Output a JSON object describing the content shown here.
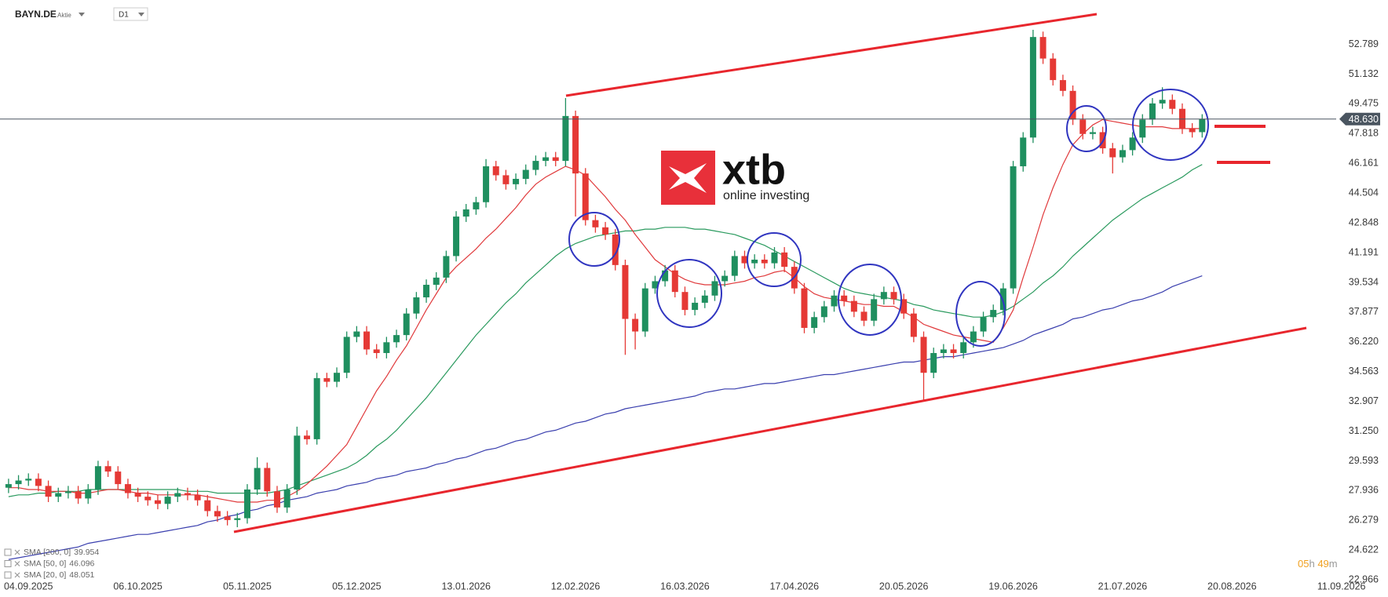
{
  "chart_data": {
    "type": "candlestick",
    "title": "BAYN.DE",
    "subtitle": "Aktie",
    "timeframe": "D1",
    "categories": [
      null,
      null,
      "04.09.2025",
      null,
      null,
      null,
      null,
      null,
      null,
      null,
      null,
      null,
      null,
      "06.10.2025",
      null,
      null,
      null,
      null,
      null,
      null,
      null,
      null,
      null,
      null,
      "05.11.2025",
      null,
      null,
      null,
      null,
      null,
      null,
      null,
      null,
      null,
      null,
      "05.12.2025",
      null,
      null,
      null,
      null,
      null,
      null,
      null,
      null,
      null,
      null,
      "13.01.2026",
      null,
      null,
      null,
      null,
      null,
      null,
      null,
      null,
      null,
      null,
      "12.02.2026",
      null,
      null,
      null,
      null,
      null,
      null,
      null,
      null,
      null,
      null,
      "16.03.2026",
      null,
      null,
      null,
      null,
      null,
      null,
      null,
      null,
      null,
      null,
      "17.04.2026",
      null,
      null,
      null,
      null,
      null,
      null,
      null,
      null,
      null,
      null,
      "20.05.2026",
      null,
      null,
      null,
      null,
      null,
      null,
      null,
      null,
      null,
      null,
      "19.06.2026",
      null,
      null,
      null,
      null,
      null,
      null,
      null,
      null,
      null,
      null,
      "21.07.2026",
      null,
      null,
      null,
      null,
      null,
      null,
      null,
      null,
      null,
      null,
      "20.08.2026",
      null,
      null,
      null,
      null,
      null,
      null,
      null,
      null,
      null,
      null,
      "11.09.2026"
    ],
    "open": [
      28.1,
      28.3,
      28.5,
      28.6,
      28.2,
      27.6,
      27.8,
      27.9,
      27.5,
      28.0,
      29.3,
      29.0,
      28.3,
      27.8,
      27.6,
      27.4,
      27.2,
      27.6,
      27.8,
      27.7,
      27.4,
      26.8,
      26.5,
      26.3,
      26.4,
      28.0,
      29.2,
      27.9,
      27.0,
      28.0,
      31.0,
      30.8,
      34.2,
      34.0,
      34.5,
      36.5,
      36.8,
      35.8,
      35.6,
      36.2,
      36.6,
      37.8,
      38.7,
      39.4,
      39.8,
      41.0,
      43.2,
      43.6,
      44.0,
      46.0,
      45.5,
      45.0,
      45.3,
      45.8,
      46.3,
      46.5,
      46.3,
      48.8,
      45.6,
      43.0,
      42.6,
      42.2,
      40.5,
      37.5,
      36.8,
      39.2,
      39.6,
      40.2,
      39.0,
      38.0,
      38.4,
      38.8,
      39.6,
      39.9,
      41.0,
      40.6,
      40.8,
      40.6,
      41.2,
      40.4,
      39.2,
      37.0,
      37.6,
      38.2,
      38.8,
      38.5,
      37.9,
      37.4,
      38.6,
      39.0,
      38.6,
      37.8,
      36.5,
      34.5,
      35.6,
      35.8,
      35.6,
      36.2,
      36.8,
      37.6,
      38.0,
      39.2,
      46.0,
      47.6,
      53.2,
      52.0,
      50.8,
      50.2,
      48.6,
      47.8,
      47.9,
      47.0,
      46.5,
      46.9,
      47.6,
      48.6,
      49.5,
      49.7,
      49.2,
      48.1,
      47.9,
      null,
      null,
      null,
      null,
      null,
      null,
      null,
      null,
      null,
      null,
      null,
      null,
      null,
      null
    ],
    "high": [
      28.6,
      28.8,
      28.9,
      28.9,
      28.5,
      28.1,
      28.2,
      28.2,
      28.3,
      29.6,
      29.6,
      29.3,
      28.6,
      28.1,
      27.9,
      27.7,
      27.9,
      28.1,
      28.1,
      28.0,
      27.7,
      27.1,
      26.8,
      26.7,
      28.3,
      29.8,
      29.5,
      28.2,
      28.3,
      31.5,
      31.3,
      34.5,
      34.5,
      34.8,
      36.8,
      37.1,
      37.1,
      36.1,
      36.5,
      36.9,
      38.1,
      39.0,
      39.7,
      40.1,
      41.3,
      43.5,
      43.9,
      44.3,
      46.4,
      46.3,
      45.8,
      45.6,
      46.1,
      46.6,
      46.8,
      46.8,
      49.8,
      49.1,
      45.9,
      43.3,
      42.9,
      42.5,
      40.8,
      37.8,
      39.5,
      39.9,
      40.5,
      40.5,
      39.3,
      38.7,
      39.1,
      39.9,
      40.2,
      41.3,
      41.3,
      41.1,
      41.1,
      41.5,
      41.5,
      40.7,
      39.5,
      37.9,
      38.5,
      39.1,
      39.1,
      38.8,
      38.2,
      38.9,
      39.3,
      39.3,
      38.9,
      38.1,
      36.8,
      35.9,
      36.1,
      36.1,
      36.5,
      37.1,
      37.9,
      38.3,
      39.5,
      46.3,
      47.9,
      53.6,
      53.5,
      52.3,
      51.1,
      50.5,
      48.9,
      48.2,
      48.2,
      47.3,
      47.2,
      47.9,
      48.9,
      49.8,
      50.4,
      50.0,
      49.5,
      48.4,
      48.9,
      null,
      null,
      null,
      null,
      null,
      null,
      null,
      null,
      null,
      null,
      null,
      null,
      null,
      null
    ],
    "low": [
      27.8,
      28.0,
      28.2,
      27.9,
      27.3,
      27.3,
      27.5,
      27.2,
      27.2,
      27.7,
      28.7,
      28.0,
      27.5,
      27.3,
      27.1,
      26.9,
      26.9,
      27.3,
      27.4,
      27.1,
      26.5,
      26.2,
      26.0,
      25.9,
      26.1,
      27.7,
      27.6,
      26.7,
      26.7,
      27.7,
      30.5,
      30.5,
      33.7,
      33.7,
      34.2,
      36.2,
      35.5,
      35.3,
      35.3,
      35.9,
      36.3,
      37.5,
      38.4,
      39.1,
      39.5,
      40.7,
      42.9,
      43.3,
      43.7,
      45.2,
      44.7,
      44.7,
      45.0,
      45.5,
      46.0,
      46.0,
      46.0,
      43.2,
      42.7,
      42.3,
      41.9,
      40.2,
      35.5,
      35.8,
      36.5,
      38.9,
      39.3,
      38.7,
      37.7,
      37.7,
      38.1,
      38.5,
      39.3,
      39.6,
      40.3,
      40.3,
      40.3,
      40.3,
      40.1,
      38.9,
      36.7,
      36.7,
      37.3,
      37.9,
      38.2,
      37.6,
      37.1,
      37.1,
      38.3,
      38.3,
      37.5,
      36.2,
      33.0,
      34.2,
      35.3,
      35.3,
      35.3,
      35.9,
      36.5,
      37.3,
      37.7,
      38.9,
      45.7,
      47.3,
      51.7,
      50.5,
      49.9,
      48.3,
      47.5,
      47.5,
      46.7,
      45.6,
      46.2,
      46.6,
      47.3,
      48.3,
      49.2,
      48.9,
      47.8,
      47.6,
      47.6,
      null,
      null,
      null,
      null,
      null,
      null,
      null,
      null,
      null,
      null,
      null,
      null,
      null,
      null
    ],
    "close": [
      28.3,
      28.5,
      28.6,
      28.2,
      27.6,
      27.8,
      27.9,
      27.5,
      28.0,
      29.3,
      29.0,
      28.3,
      27.8,
      27.6,
      27.4,
      27.2,
      27.6,
      27.8,
      27.7,
      27.4,
      26.8,
      26.5,
      26.3,
      26.4,
      28.0,
      29.2,
      27.9,
      27.0,
      28.0,
      31.0,
      30.8,
      34.2,
      34.0,
      34.5,
      36.5,
      36.8,
      35.8,
      35.6,
      36.2,
      36.6,
      37.8,
      38.7,
      39.4,
      39.8,
      41.0,
      43.2,
      43.6,
      44.0,
      46.0,
      45.5,
      45.0,
      45.3,
      45.8,
      46.3,
      46.5,
      46.3,
      48.8,
      45.6,
      43.0,
      42.6,
      42.2,
      40.5,
      37.5,
      36.8,
      39.2,
      39.6,
      40.2,
      39.0,
      38.0,
      38.4,
      38.8,
      39.6,
      39.9,
      41.0,
      40.6,
      40.8,
      40.6,
      41.2,
      40.4,
      39.2,
      37.0,
      37.6,
      38.2,
      38.8,
      38.5,
      37.9,
      37.4,
      38.6,
      39.0,
      38.6,
      37.8,
      36.5,
      34.5,
      35.6,
      35.8,
      35.6,
      36.2,
      36.8,
      37.6,
      38.0,
      39.2,
      46.0,
      47.6,
      53.2,
      52.0,
      50.8,
      50.2,
      48.6,
      47.8,
      47.9,
      47.0,
      46.5,
      46.9,
      47.6,
      48.6,
      49.5,
      49.7,
      49.2,
      48.1,
      47.9,
      48.63,
      null,
      null,
      null,
      null,
      null,
      null,
      null,
      null,
      null,
      null,
      null,
      null,
      null,
      null
    ],
    "up_color": "#1f8f5f",
    "down_color": "#e53935",
    "ylim": [
      22.8,
      55.26
    ],
    "yticks": [
      22.966,
      24.622,
      26.279,
      27.936,
      29.593,
      {
        "value": 31.25,
        "label": "31.250"
      },
      32.907,
      34.563,
      {
        "value": 36.22,
        "label": "36.220"
      },
      37.877,
      39.534,
      41.191,
      42.848,
      44.504,
      46.161,
      47.818,
      49.475,
      51.132,
      52.789
    ],
    "last_price": {
      "value": 48.63,
      "label": "48.630"
    },
    "indicators": [
      {
        "name": "SMA [200, 0]",
        "value": 39.954,
        "color": "#3a3fae",
        "values": [
          24.1,
          24.2,
          24.3,
          24.4,
          24.5,
          24.6,
          24.7,
          24.8,
          25.0,
          25.1,
          25.2,
          25.3,
          25.4,
          25.5,
          25.5,
          25.6,
          25.7,
          25.8,
          25.9,
          26.0,
          26.2,
          26.3,
          26.5,
          26.6,
          26.8,
          26.9,
          27.1,
          27.2,
          27.4,
          27.5,
          27.6,
          27.8,
          27.9,
          28.0,
          28.2,
          28.3,
          28.4,
          28.6,
          28.7,
          28.8,
          29.0,
          29.1,
          29.2,
          29.4,
          29.5,
          29.7,
          29.8,
          30.0,
          30.2,
          30.3,
          30.5,
          30.7,
          30.8,
          31.0,
          31.2,
          31.3,
          31.5,
          31.7,
          31.8,
          32.0,
          32.2,
          32.3,
          32.5,
          32.6,
          32.7,
          32.8,
          32.9,
          33.0,
          33.1,
          33.2,
          33.4,
          33.5,
          33.6,
          33.6,
          33.7,
          33.8,
          33.9,
          33.9,
          34.0,
          34.1,
          34.2,
          34.3,
          34.4,
          34.4,
          34.5,
          34.6,
          34.7,
          34.8,
          34.9,
          35.0,
          35.1,
          35.1,
          35.2,
          35.3,
          35.4,
          35.4,
          35.5,
          35.6,
          35.7,
          35.8,
          35.9,
          36.1,
          36.3,
          36.6,
          36.8,
          37.0,
          37.2,
          37.5,
          37.6,
          37.8,
          38.0,
          38.1,
          38.3,
          38.5,
          38.6,
          38.8,
          39.0,
          39.3,
          39.5,
          39.7,
          39.9,
          null,
          null,
          null,
          null,
          null,
          null,
          null,
          null,
          null,
          null,
          null,
          null,
          null,
          null
        ]
      },
      {
        "name": "SMA [50, 0]",
        "value": 46.096,
        "color": "#2a9a5e",
        "values": [
          27.6,
          27.7,
          27.7,
          27.8,
          27.8,
          27.9,
          27.9,
          27.9,
          28.0,
          28.0,
          28.0,
          28.0,
          28.0,
          28.0,
          28.0,
          28.0,
          28.0,
          28.0,
          27.9,
          27.9,
          27.9,
          27.8,
          27.8,
          27.8,
          27.8,
          27.8,
          27.8,
          27.9,
          28.0,
          28.2,
          28.4,
          28.6,
          28.8,
          29.0,
          29.2,
          29.5,
          29.9,
          30.4,
          30.8,
          31.3,
          31.9,
          32.5,
          33.1,
          33.8,
          34.5,
          35.2,
          35.9,
          36.6,
          37.2,
          37.8,
          38.4,
          38.9,
          39.5,
          40.0,
          40.5,
          41.0,
          41.4,
          41.7,
          41.9,
          42.1,
          42.2,
          42.3,
          42.4,
          42.4,
          42.5,
          42.5,
          42.6,
          42.6,
          42.6,
          42.5,
          42.5,
          42.4,
          42.3,
          42.2,
          42.0,
          41.8,
          41.6,
          41.3,
          41.0,
          40.7,
          40.4,
          40.1,
          39.8,
          39.5,
          39.2,
          39.0,
          38.9,
          38.8,
          38.7,
          38.6,
          38.5,
          38.3,
          38.2,
          38.0,
          37.9,
          37.8,
          37.7,
          37.6,
          37.6,
          37.7,
          37.9,
          38.2,
          38.6,
          39.0,
          39.5,
          39.9,
          40.4,
          41.0,
          41.5,
          42.0,
          42.5,
          43.0,
          43.4,
          43.8,
          44.2,
          44.5,
          44.8,
          45.1,
          45.4,
          45.8,
          46.1,
          null,
          null,
          null,
          null,
          null,
          null,
          null,
          null,
          null,
          null,
          null,
          null,
          null,
          null
        ]
      },
      {
        "name": "SMA [20, 0]",
        "value": 48.051,
        "color": "#e0393b",
        "values": [
          28.1,
          28.1,
          28.0,
          28.0,
          27.9,
          27.9,
          27.9,
          27.8,
          27.8,
          27.9,
          28.0,
          28.0,
          27.9,
          27.8,
          27.8,
          27.7,
          27.7,
          27.7,
          27.7,
          27.7,
          27.6,
          27.5,
          27.4,
          27.3,
          27.3,
          27.3,
          27.4,
          27.4,
          27.6,
          27.9,
          28.3,
          28.8,
          29.3,
          29.9,
          30.5,
          31.5,
          32.5,
          33.5,
          34.3,
          35.2,
          36.0,
          37.0,
          38.0,
          38.9,
          39.8,
          40.4,
          40.9,
          41.4,
          42.0,
          42.5,
          43.1,
          43.7,
          44.4,
          45.0,
          45.4,
          45.7,
          46.0,
          45.8,
          45.5,
          44.9,
          44.3,
          43.6,
          43.0,
          42.2,
          41.5,
          40.8,
          40.4,
          40.0,
          39.7,
          39.5,
          39.4,
          39.4,
          39.4,
          39.5,
          39.6,
          39.8,
          39.9,
          40.1,
          40.2,
          39.8,
          39.3,
          38.9,
          38.7,
          38.6,
          38.5,
          38.4,
          38.3,
          38.3,
          38.2,
          38.2,
          37.9,
          37.6,
          37.2,
          37.0,
          36.8,
          36.6,
          36.5,
          36.4,
          36.3,
          36.2,
          37.0,
          38.0,
          39.8,
          41.5,
          43.3,
          44.8,
          46.1,
          47.2,
          47.8,
          48.3,
          48.6,
          48.5,
          48.4,
          48.3,
          48.2,
          48.2,
          48.2,
          48.1,
          48.1,
          48.1,
          48.1,
          null,
          null,
          null,
          null,
          null,
          null,
          null,
          null,
          null,
          null,
          null,
          null,
          null,
          null
        ]
      }
    ],
    "countdown": {
      "hours": "05",
      "hours_unit": "h",
      "minutes": "49",
      "minutes_unit": "m"
    },
    "logo": {
      "brand": "xtb",
      "tagline": "online investing"
    }
  }
}
